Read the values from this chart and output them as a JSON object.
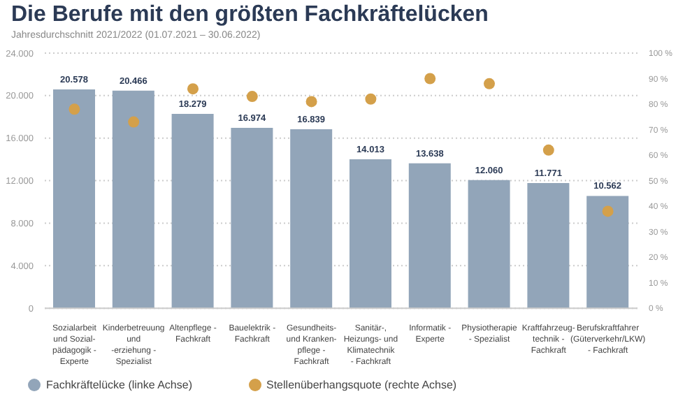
{
  "chart_data": {
    "type": "bar",
    "title": "Die Berufe mit den größten Fachkräftelücken",
    "subtitle": "Jahresdurchschnitt 2021/2022 (01.07.2021 – 30.06.2022)",
    "categories": [
      "Sozialarbeit und Sozial-pädagogik - Experte",
      "Kinderbetreuung und -erziehung - Spezialist",
      "Altenpflege - Fachkraft",
      "Bauelektrik - Fachkraft",
      "Gesundheits- und Kranken-pflege - Fachkraft",
      "Sanitär-, Heizungs- und Klimatechnik - Fachkraft",
      "Informatik - Experte",
      "Physiotherapie - Spezialist",
      "Kraftfahrzeug-technik - Fachkraft",
      "Berufskraftfahrer (Güterverkehr/LKW) - Fachkraft"
    ],
    "series": [
      {
        "name": "Fachkräftelücke (linke Achse)",
        "color": "#92a5b9",
        "values": [
          20578,
          20466,
          18279,
          16974,
          16839,
          14013,
          13638,
          12060,
          11771,
          10562
        ],
        "value_labels": [
          "20.578",
          "20.466",
          "18.279",
          "16.974",
          "16.839",
          "14.013",
          "13.638",
          "12.060",
          "11.771",
          "10.562"
        ]
      },
      {
        "name": "Stellenüberhangsquote (rechte Achse)",
        "type": "scatter",
        "axis": "y2",
        "color": "#d4a04a",
        "values": [
          78,
          73,
          86,
          83,
          81,
          82,
          90,
          88,
          62,
          38
        ]
      }
    ],
    "ylim": [
      0,
      24000
    ],
    "yticks": [
      {
        "value": 0,
        "label": "0"
      },
      {
        "value": 4000,
        "label": "4.000"
      },
      {
        "value": 8000,
        "label": "8.000"
      },
      {
        "value": 12000,
        "label": "12.000"
      },
      {
        "value": 16000,
        "label": "16.000"
      },
      {
        "value": 20000,
        "label": "20.000"
      },
      {
        "value": 24000,
        "label": "24.000"
      }
    ],
    "y2lim": [
      0,
      100
    ],
    "y2ticks": [
      {
        "value": 0,
        "label": "0 %"
      },
      {
        "value": 10,
        "label": "10 %"
      },
      {
        "value": 20,
        "label": "20 %"
      },
      {
        "value": 30,
        "label": "30 %"
      },
      {
        "value": 40,
        "label": "40 %"
      },
      {
        "value": 50,
        "label": "50 %"
      },
      {
        "value": 60,
        "label": "60 %"
      },
      {
        "value": 70,
        "label": "70 %"
      },
      {
        "value": 80,
        "label": "80 %"
      },
      {
        "value": 90,
        "label": "90 %"
      },
      {
        "value": 100,
        "label": "100 %"
      }
    ],
    "grid": "y",
    "legend": "bottom left",
    "marker": "circle"
  }
}
